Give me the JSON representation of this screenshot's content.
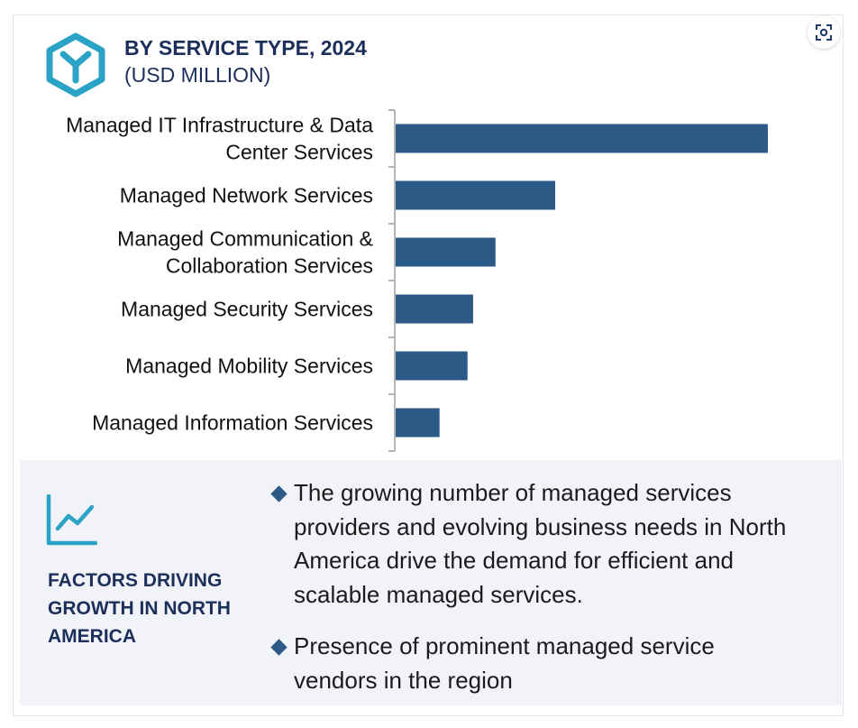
{
  "header": {
    "title": "BY SERVICE TYPE, 2024",
    "subtitle": "(USD MILLION)"
  },
  "chart_data": {
    "type": "bar",
    "orientation": "horizontal",
    "title": "BY SERVICE TYPE, 2024",
    "subtitle": "(USD MILLION)",
    "categories": [
      [
        "Managed IT Infrastructure & Data",
        "Center Services"
      ],
      [
        "Managed Network Services"
      ],
      [
        "Managed Communication &",
        "Collaboration Services"
      ],
      [
        "Managed Security Services"
      ],
      [
        "Managed Mobility Services"
      ],
      [
        "Managed Information Services"
      ]
    ],
    "values": [
      100,
      43,
      27,
      21,
      19.5,
      12
    ],
    "value_scale": "relative (no axis values shown)",
    "xlim": [
      0,
      107
    ],
    "bar_color": "#2c5a86",
    "axis_color": "#b5b5b5",
    "grid": false,
    "legend": "none"
  },
  "factors": {
    "title": "FACTORS DRIVING GROWTH IN NORTH AMERICA",
    "bullets": [
      "The growing number of managed services providers and evolving business needs in North America drive the demand for efficient and scalable managed services.",
      "Presence of prominent managed service vendors in the region"
    ]
  },
  "icons": {
    "logo": "hexagon-logo-icon",
    "expand": "expand-image-icon",
    "growth": "line-chart-icon",
    "bullet": "diamond-bullet-icon"
  },
  "colors": {
    "title": "#1c2e5a",
    "accent": "#2ba3c7",
    "bar": "#2c5a86",
    "panel": "#f1f3f8"
  }
}
